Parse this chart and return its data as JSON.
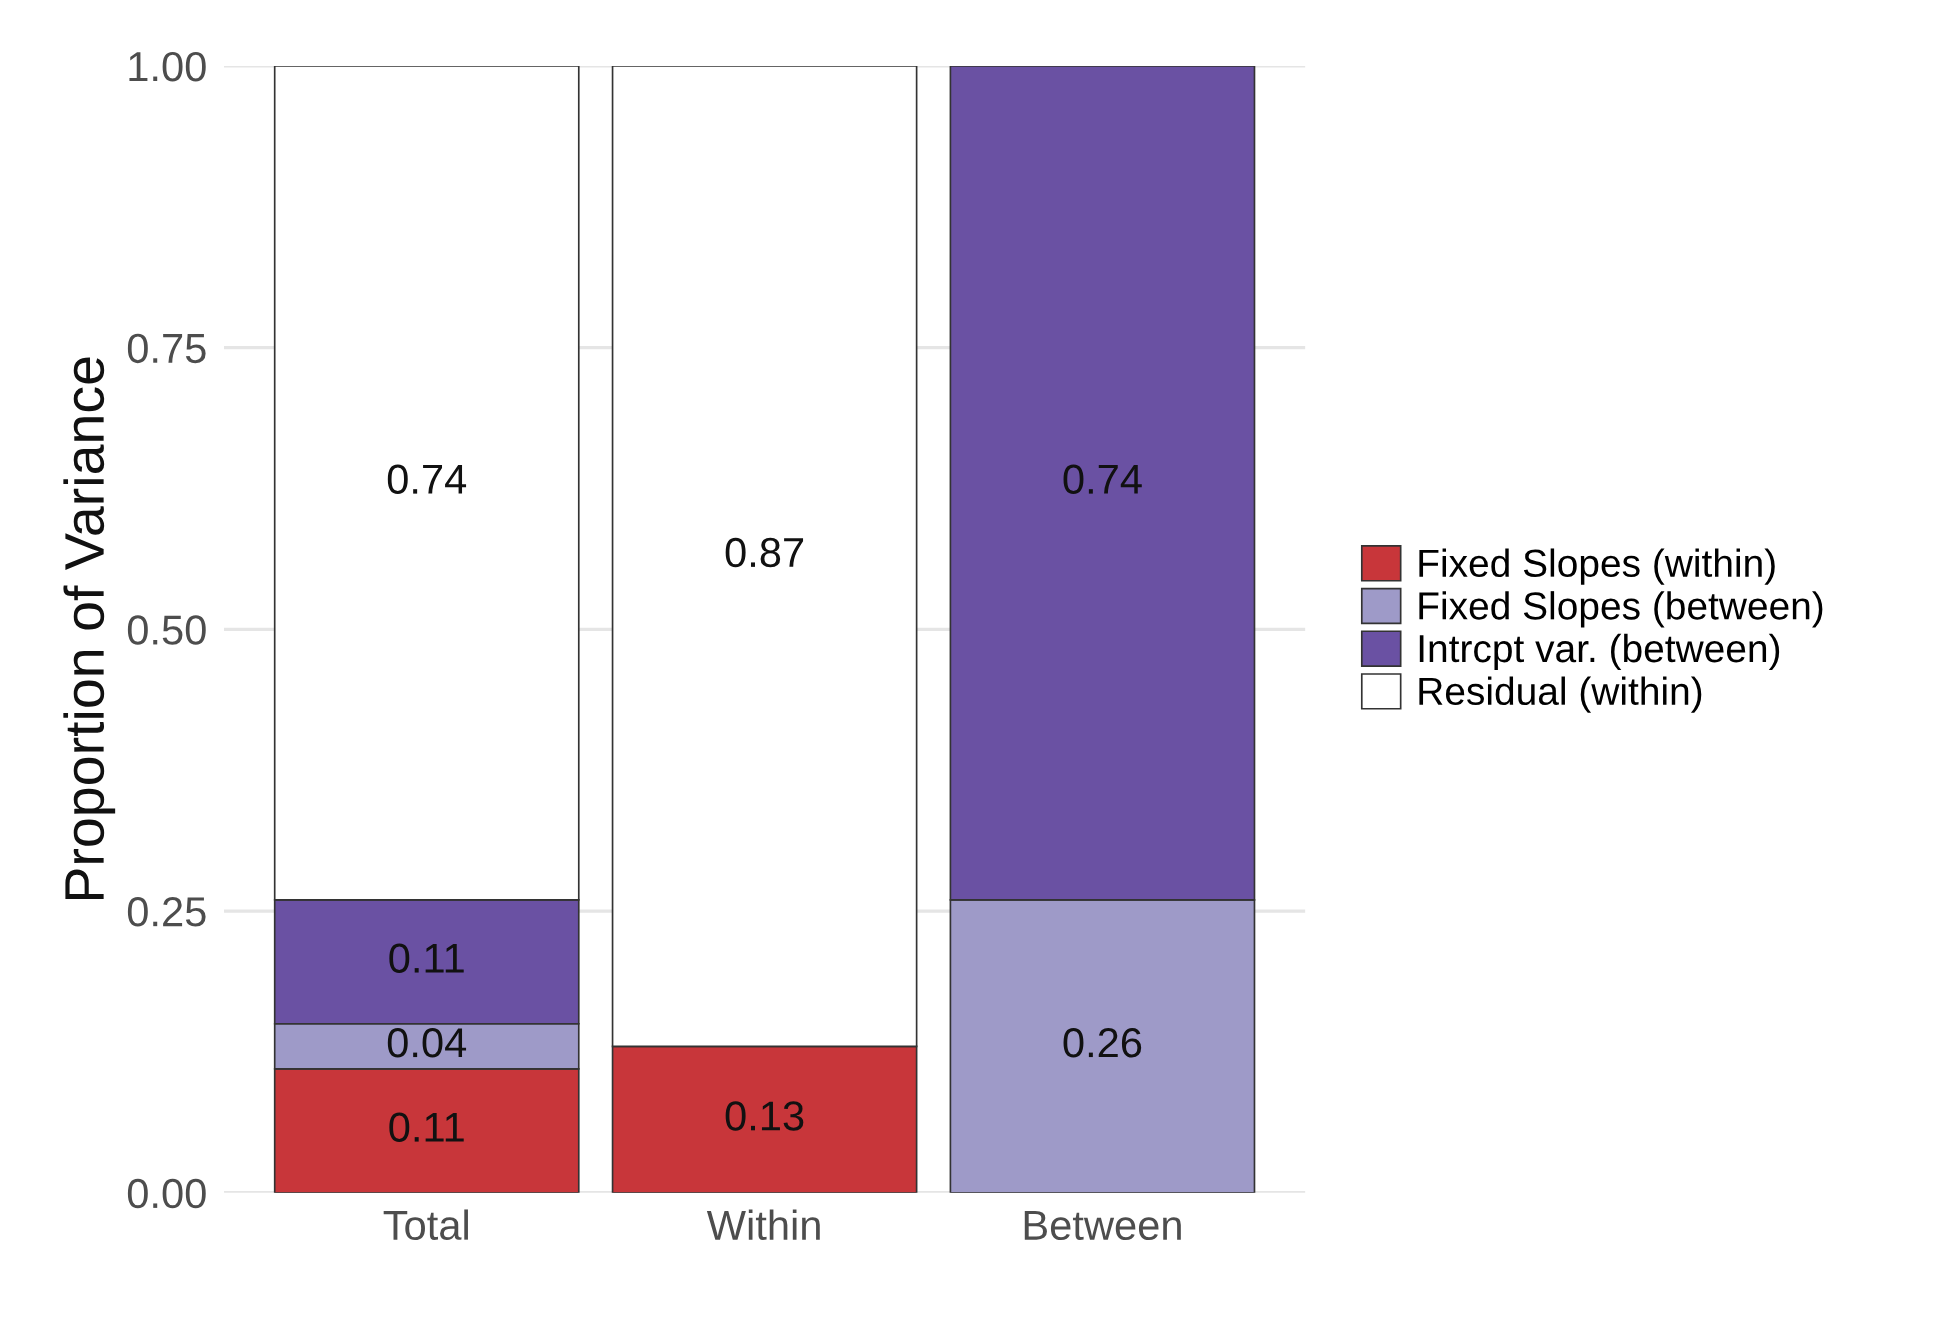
{
  "chart_data": {
    "type": "bar",
    "stacked": true,
    "ylabel": "Proportion of Variance",
    "categories": [
      "Total",
      "Within",
      "Between"
    ],
    "series": [
      {
        "name": "Fixed Slopes (within)",
        "color": "#c8363a",
        "values": [
          0.11,
          0.13,
          null
        ],
        "value_labels": [
          "0.11",
          "0.13",
          null
        ]
      },
      {
        "name": "Fixed Slopes (between)",
        "color": "#9e9ac8",
        "values": [
          0.04,
          null,
          0.26
        ],
        "value_labels": [
          "0.04",
          null,
          "0.26"
        ]
      },
      {
        "name": "Intrcpt var. (between)",
        "color": "#6a51a3",
        "values": [
          0.11,
          null,
          0.74
        ],
        "value_labels": [
          "0.11",
          null,
          "0.74"
        ]
      },
      {
        "name": "Residual (within)",
        "color": "#ffffff",
        "values": [
          0.74,
          0.87,
          null
        ],
        "value_labels": [
          "0.74",
          "0.87",
          null
        ]
      }
    ],
    "ylim": [
      0,
      1
    ],
    "yticks": [
      {
        "value": 0,
        "label": "0.00"
      },
      {
        "value": 0.25,
        "label": "0.25"
      },
      {
        "value": 0.5,
        "label": "0.50"
      },
      {
        "value": 0.75,
        "label": "0.75"
      },
      {
        "value": 1,
        "label": "1.00"
      }
    ],
    "grid": true,
    "legend": "right"
  }
}
